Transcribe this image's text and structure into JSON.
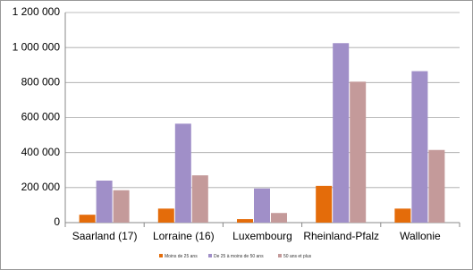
{
  "chart_data": {
    "type": "bar",
    "categories": [
      "Saarland (17)",
      "Lorraine (16)",
      "Luxembourg",
      "Rheinland-Pfalz",
      "Wallonie"
    ],
    "series": [
      {
        "name": "Moins de 25 ans",
        "color": "#e46c0a",
        "values": [
          45000,
          80000,
          20000,
          210000,
          80000
        ]
      },
      {
        "name": "De 25 à moins de 50 ans",
        "color": "#a08fc8",
        "values": [
          240000,
          565000,
          195000,
          1025000,
          865000
        ]
      },
      {
        "name": "50 ans et plus",
        "color": "#c49a9a",
        "values": [
          185000,
          270000,
          55000,
          805000,
          415000
        ]
      }
    ],
    "ylim": [
      0,
      1200000
    ],
    "yticks": [
      0,
      {
        "value": 200000,
        "label": "200 000"
      },
      {
        "value": 400000,
        "label": "400 000"
      },
      {
        "value": 600000,
        "label": "600 000"
      },
      {
        "value": 800000,
        "label": "800 000"
      },
      {
        "value": 1000000,
        "label": "1 000 000"
      },
      {
        "value": 1200000,
        "label": "1 200 000"
      }
    ],
    "grid": true,
    "legend": "bottom"
  }
}
